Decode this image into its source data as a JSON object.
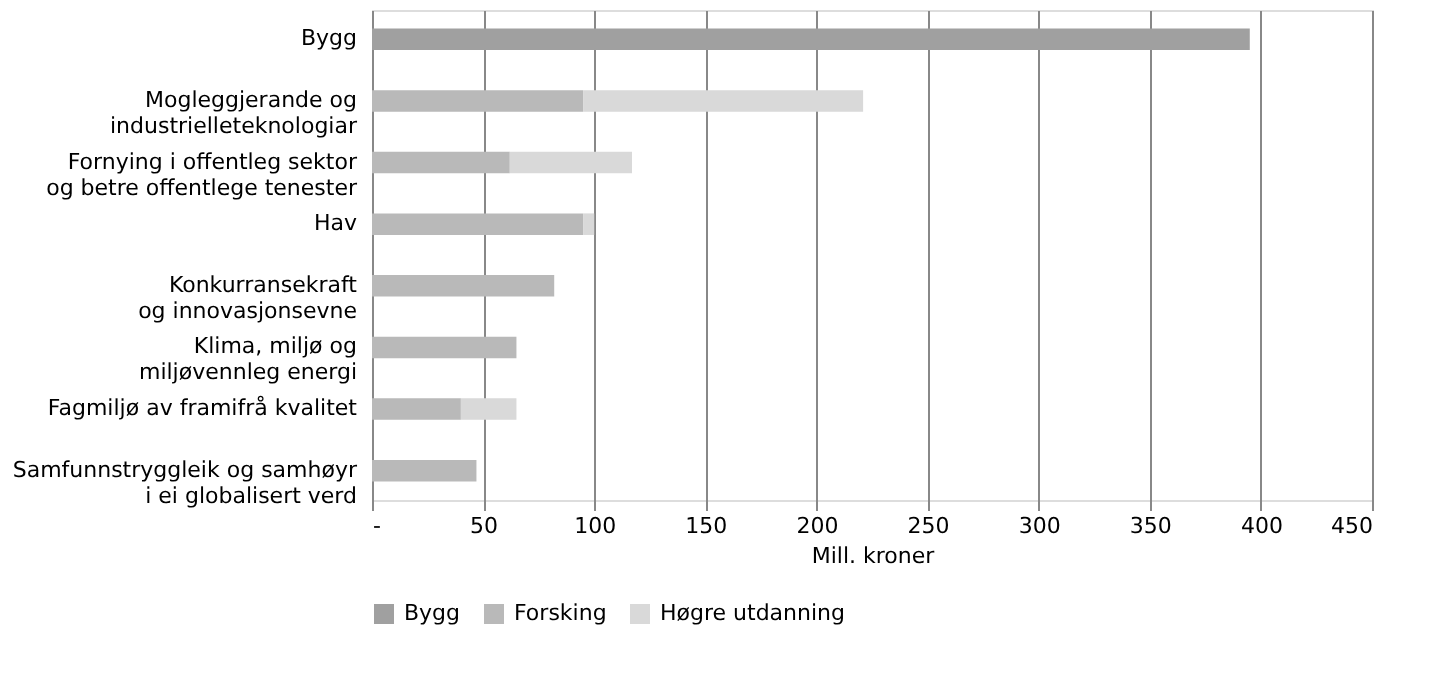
{
  "chart_data": {
    "type": "bar",
    "orientation": "horizontal",
    "stacked": true,
    "xlabel": "Mill. kroner",
    "categories": [
      "Bygg",
      "Mogleggjerande og industrielleteknologiar",
      "Fornying i offentleg sektor og betre offentlege tenester",
      "Hav",
      "Konkurransekraft og innovasjonsevne",
      "Klima, miljø og miljøvennleg energi",
      "Fagmiljø av framifrå kvalitet",
      "Samfunnstryggleik og samhøyr i ei globalisert verd"
    ],
    "series": [
      {
        "name": "Bygg",
        "color": "#a0a0a0",
        "values": [
          395,
          null,
          null,
          null,
          null,
          null,
          null,
          null
        ]
      },
      {
        "name": "Forsking",
        "color": "#b9b9b9",
        "values": [
          null,
          95,
          62,
          95,
          82,
          65,
          40,
          47
        ]
      },
      {
        "name": "Høgre utdanning",
        "color": "#d9d9d9",
        "values": [
          null,
          126,
          55,
          5,
          null,
          null,
          25,
          null
        ]
      }
    ],
    "xlim": [
      0,
      450
    ],
    "xticks": [
      {
        "value": 0,
        "label": "-"
      },
      50,
      100,
      150,
      200,
      250,
      300,
      350,
      400,
      450
    ],
    "grid": "x",
    "legend": "bottom"
  }
}
